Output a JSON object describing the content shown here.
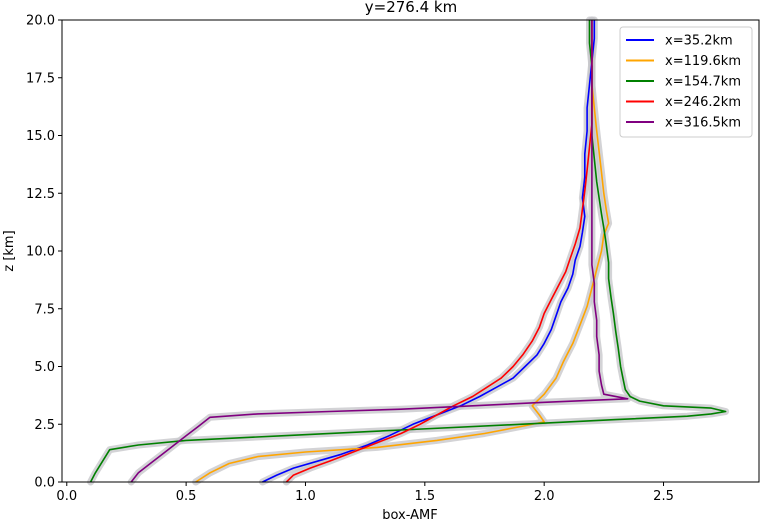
{
  "chart_data": {
    "type": "line",
    "title": "y=276.4 km",
    "xlabel": "box-AMF",
    "ylabel": "z [km]",
    "xlim": [
      -0.02,
      2.9
    ],
    "ylim": [
      0,
      20
    ],
    "xticks": [
      0.0,
      0.5,
      1.0,
      1.5,
      2.0,
      2.5
    ],
    "xtick_labels": [
      "0.0",
      "0.5",
      "1.0",
      "1.5",
      "2.0",
      "2.5"
    ],
    "yticks": [
      0.0,
      2.5,
      5.0,
      7.5,
      10.0,
      12.5,
      15.0,
      17.5,
      20.0
    ],
    "ytick_labels": [
      "0.0",
      "2.5",
      "5.0",
      "7.5",
      "10.0",
      "12.5",
      "15.0",
      "17.5",
      "20.0"
    ],
    "grid": false,
    "legend_position": "top-right",
    "uncertainty_band_color": "#c8c8cc",
    "series": [
      {
        "name": "x=35.2km",
        "color": "#0000ff",
        "points": [
          [
            0.82,
            0.0
          ],
          [
            0.88,
            0.3
          ],
          [
            0.95,
            0.6
          ],
          [
            1.05,
            0.9
          ],
          [
            1.15,
            1.2
          ],
          [
            1.26,
            1.6
          ],
          [
            1.35,
            2.0
          ],
          [
            1.45,
            2.5
          ],
          [
            1.55,
            2.9
          ],
          [
            1.65,
            3.3
          ],
          [
            1.73,
            3.7
          ],
          [
            1.8,
            4.1
          ],
          [
            1.87,
            4.5
          ],
          [
            1.92,
            5.0
          ],
          [
            1.97,
            5.5
          ],
          [
            2.0,
            6.0
          ],
          [
            2.03,
            6.6
          ],
          [
            2.05,
            7.2
          ],
          [
            2.07,
            7.8
          ],
          [
            2.1,
            8.4
          ],
          [
            2.12,
            9.0
          ],
          [
            2.13,
            9.6
          ],
          [
            2.15,
            10.2
          ],
          [
            2.16,
            10.8
          ],
          [
            2.17,
            11.5
          ],
          [
            2.16,
            12.3
          ],
          [
            2.17,
            13.2
          ],
          [
            2.17,
            14.2
          ],
          [
            2.18,
            15.2
          ],
          [
            2.18,
            16.2
          ],
          [
            2.19,
            17.2
          ],
          [
            2.2,
            18.2
          ],
          [
            2.21,
            19.2
          ],
          [
            2.21,
            20.0
          ]
        ]
      },
      {
        "name": "x=119.6km",
        "color": "#ffa500",
        "points": [
          [
            0.54,
            0.0
          ],
          [
            0.6,
            0.4
          ],
          [
            0.68,
            0.8
          ],
          [
            0.8,
            1.1
          ],
          [
            1.0,
            1.3
          ],
          [
            1.3,
            1.5
          ],
          [
            1.55,
            1.8
          ],
          [
            1.75,
            2.1
          ],
          [
            1.9,
            2.4
          ],
          [
            2.0,
            2.6
          ],
          [
            1.98,
            2.9
          ],
          [
            1.95,
            3.3
          ],
          [
            2.0,
            3.8
          ],
          [
            2.05,
            4.5
          ],
          [
            2.08,
            5.2
          ],
          [
            2.12,
            6.0
          ],
          [
            2.15,
            6.8
          ],
          [
            2.18,
            7.6
          ],
          [
            2.2,
            8.4
          ],
          [
            2.22,
            9.2
          ],
          [
            2.24,
            10.0
          ],
          [
            2.25,
            10.7
          ],
          [
            2.27,
            11.2
          ],
          [
            2.26,
            11.8
          ],
          [
            2.25,
            12.5
          ],
          [
            2.24,
            13.4
          ],
          [
            2.23,
            14.3
          ],
          [
            2.22,
            15.2
          ],
          [
            2.21,
            16.2
          ],
          [
            2.2,
            17.2
          ],
          [
            2.2,
            18.2
          ],
          [
            2.2,
            19.2
          ],
          [
            2.2,
            20.0
          ]
        ]
      },
      {
        "name": "x=154.7km",
        "color": "#008000",
        "points": [
          [
            0.1,
            0.0
          ],
          [
            0.12,
            0.4
          ],
          [
            0.15,
            0.9
          ],
          [
            0.18,
            1.4
          ],
          [
            0.3,
            1.6
          ],
          [
            0.5,
            1.8
          ],
          [
            0.9,
            2.0
          ],
          [
            1.4,
            2.25
          ],
          [
            1.9,
            2.5
          ],
          [
            2.3,
            2.7
          ],
          [
            2.6,
            2.85
          ],
          [
            2.7,
            2.95
          ],
          [
            2.76,
            3.05
          ],
          [
            2.7,
            3.2
          ],
          [
            2.5,
            3.3
          ],
          [
            2.4,
            3.5
          ],
          [
            2.36,
            3.7
          ],
          [
            2.34,
            4.0
          ],
          [
            2.33,
            4.5
          ],
          [
            2.32,
            5.0
          ],
          [
            2.31,
            5.8
          ],
          [
            2.3,
            6.5
          ],
          [
            2.29,
            7.3
          ],
          [
            2.28,
            8.0
          ],
          [
            2.27,
            8.8
          ],
          [
            2.27,
            9.5
          ],
          [
            2.26,
            10.3
          ],
          [
            2.25,
            11.0
          ],
          [
            2.24,
            11.6
          ],
          [
            2.23,
            12.3
          ],
          [
            2.22,
            13.0
          ],
          [
            2.21,
            14.0
          ],
          [
            2.2,
            15.0
          ],
          [
            2.2,
            16.0
          ],
          [
            2.2,
            17.0
          ],
          [
            2.2,
            18.0
          ],
          [
            2.19,
            19.0
          ],
          [
            2.19,
            20.0
          ]
        ]
      },
      {
        "name": "x=246.2km",
        "color": "#ff0000",
        "points": [
          [
            0.92,
            0.0
          ],
          [
            0.95,
            0.3
          ],
          [
            1.02,
            0.6
          ],
          [
            1.1,
            0.9
          ],
          [
            1.2,
            1.3
          ],
          [
            1.3,
            1.7
          ],
          [
            1.4,
            2.1
          ],
          [
            1.48,
            2.5
          ],
          [
            1.55,
            2.9
          ],
          [
            1.62,
            3.3
          ],
          [
            1.7,
            3.7
          ],
          [
            1.76,
            4.1
          ],
          [
            1.82,
            4.5
          ],
          [
            1.87,
            5.0
          ],
          [
            1.91,
            5.5
          ],
          [
            1.95,
            6.1
          ],
          [
            1.98,
            6.7
          ],
          [
            2.0,
            7.3
          ],
          [
            2.03,
            7.9
          ],
          [
            2.06,
            8.5
          ],
          [
            2.09,
            9.1
          ],
          [
            2.11,
            9.7
          ],
          [
            2.13,
            10.3
          ],
          [
            2.15,
            11.0
          ],
          [
            2.16,
            11.8
          ],
          [
            2.17,
            12.6
          ],
          [
            2.18,
            13.5
          ],
          [
            2.19,
            14.5
          ],
          [
            2.2,
            15.5
          ],
          [
            2.2,
            16.5
          ],
          [
            2.2,
            17.5
          ],
          [
            2.2,
            18.5
          ],
          [
            2.2,
            19.3
          ],
          [
            2.2,
            20.0
          ]
        ]
      },
      {
        "name": "x=316.5km",
        "color": "#800080",
        "points": [
          [
            0.27,
            0.0
          ],
          [
            0.3,
            0.4
          ],
          [
            0.35,
            0.8
          ],
          [
            0.4,
            1.2
          ],
          [
            0.45,
            1.6
          ],
          [
            0.5,
            2.0
          ],
          [
            0.55,
            2.4
          ],
          [
            0.6,
            2.8
          ],
          [
            0.8,
            2.95
          ],
          [
            1.1,
            3.05
          ],
          [
            1.4,
            3.15
          ],
          [
            1.7,
            3.3
          ],
          [
            2.0,
            3.45
          ],
          [
            2.35,
            3.6
          ],
          [
            2.25,
            3.8
          ],
          [
            2.24,
            4.2
          ],
          [
            2.23,
            4.8
          ],
          [
            2.23,
            5.5
          ],
          [
            2.22,
            6.3
          ],
          [
            2.22,
            7.0
          ],
          [
            2.21,
            7.8
          ],
          [
            2.21,
            8.6
          ],
          [
            2.2,
            9.4
          ],
          [
            2.2,
            10.2
          ],
          [
            2.2,
            11.0
          ],
          [
            2.2,
            11.8
          ],
          [
            2.2,
            12.6
          ],
          [
            2.2,
            13.5
          ],
          [
            2.2,
            14.5
          ],
          [
            2.2,
            15.5
          ],
          [
            2.2,
            16.5
          ],
          [
            2.2,
            17.5
          ],
          [
            2.2,
            18.5
          ],
          [
            2.2,
            19.3
          ],
          [
            2.2,
            20.0
          ]
        ]
      }
    ]
  }
}
